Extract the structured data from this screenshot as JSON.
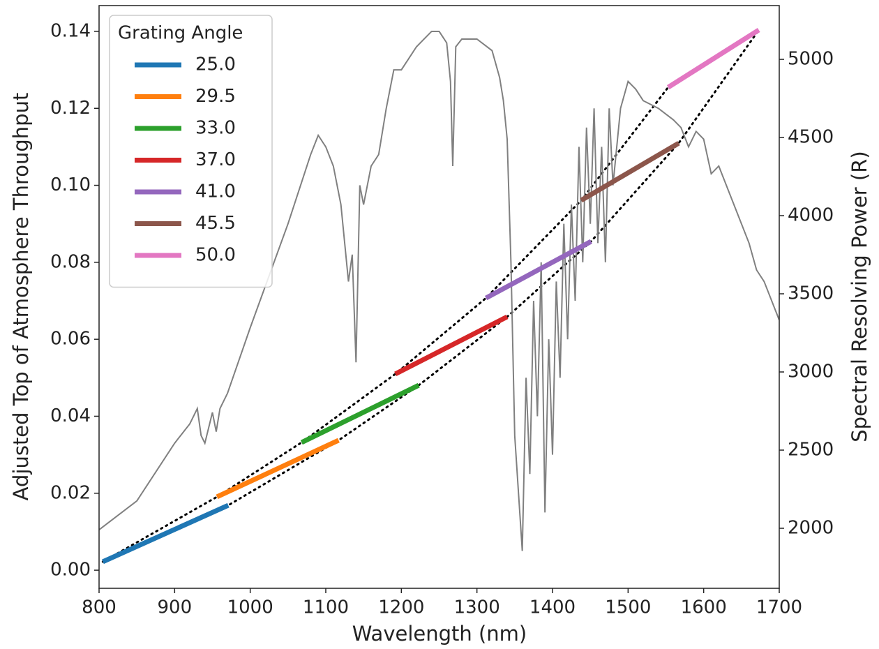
{
  "chart_data": {
    "type": "line",
    "xlabel": "Wavelength (nm)",
    "ylabel": "Adjusted Top of Atmosphere Throughput",
    "y2label": "Spectral Resolving Power (R)",
    "xlim": [
      800,
      1700
    ],
    "ylim": [
      -0.0047,
      0.1467
    ],
    "y2lim": [
      1616,
      5344
    ],
    "xticks": [
      800,
      900,
      1000,
      1100,
      1200,
      1300,
      1400,
      1500,
      1600,
      1700
    ],
    "yticks": [
      {
        "value": 0,
        "label": "0.00"
      },
      0.02,
      0.04,
      0.06,
      0.08,
      {
        "value": 0.1,
        "label": "0.10"
      },
      0.12,
      0.14
    ],
    "y2ticks": [
      2000,
      2500,
      3000,
      3500,
      4000,
      4500,
      5000
    ],
    "legend": "upper left",
    "legend_title": "Grating Angle",
    "envelope_lines": {
      "color": "#000000",
      "style": "dotted"
    },
    "series": [
      {
        "color": "#808080",
        "x": [
          800,
          850,
          900,
          920,
          930,
          935,
          940,
          950,
          955,
          960,
          970,
          1000,
          1050,
          1080,
          1090,
          1100,
          1110,
          1120,
          1125,
          1130,
          1135,
          1140,
          1145,
          1150,
          1160,
          1170,
          1180,
          1190,
          1200,
          1210,
          1220,
          1230,
          1240,
          1250,
          1260,
          1265,
          1268,
          1272,
          1280,
          1300,
          1320,
          1330,
          1335,
          1340,
          1345,
          1350,
          1355,
          1360,
          1365,
          1370,
          1375,
          1380,
          1385,
          1390,
          1395,
          1400,
          1405,
          1410,
          1415,
          1420,
          1425,
          1430,
          1435,
          1440,
          1445,
          1450,
          1455,
          1460,
          1465,
          1470,
          1475,
          1480,
          1490,
          1500,
          1510,
          1520,
          1540,
          1560,
          1570,
          1580,
          1590,
          1600,
          1610,
          1620,
          1640,
          1660,
          1670,
          1680,
          1700
        ],
        "values": [
          0.0105,
          0.018,
          0.033,
          0.038,
          0.042,
          0.035,
          0.033,
          0.041,
          0.036,
          0.042,
          0.046,
          0.063,
          0.09,
          0.108,
          0.113,
          0.11,
          0.105,
          0.095,
          0.085,
          0.075,
          0.082,
          0.054,
          0.1,
          0.095,
          0.105,
          0.108,
          0.12,
          0.13,
          0.13,
          0.133,
          0.136,
          0.138,
          0.14,
          0.14,
          0.137,
          0.127,
          0.105,
          0.136,
          0.138,
          0.138,
          0.135,
          0.128,
          0.122,
          0.112,
          0.08,
          0.035,
          0.02,
          0.005,
          0.05,
          0.025,
          0.07,
          0.04,
          0.08,
          0.015,
          0.06,
          0.03,
          0.075,
          0.05,
          0.09,
          0.06,
          0.095,
          0.07,
          0.11,
          0.08,
          0.115,
          0.09,
          0.12,
          0.085,
          0.11,
          0.08,
          0.12,
          0.1,
          0.12,
          0.127,
          0.125,
          0.122,
          0.12,
          0.117,
          0.115,
          0.11,
          0.114,
          0.112,
          0.103,
          0.105,
          0.095,
          0.085,
          0.078,
          0.075,
          0.065
        ]
      },
      {
        "name": "25.0",
        "color": "#1f77b4",
        "axis": "y2",
        "x": [
          805,
          971
        ],
        "values": [
          1786,
          2147
        ]
      },
      {
        "name": "29.5",
        "color": "#ff7f0e",
        "axis": "y2",
        "x": [
          956,
          1117
        ],
        "values": [
          2201,
          2563
        ]
      },
      {
        "name": "33.0",
        "color": "#2ca02c",
        "axis": "y2",
        "x": [
          1068,
          1223
        ],
        "values": [
          2549,
          2915
        ]
      },
      {
        "name": "37.0",
        "color": "#d62728",
        "axis": "y2",
        "x": [
          1192,
          1340
        ],
        "values": [
          2987,
          3353
        ]
      },
      {
        "name": "41.0",
        "color": "#9467bd",
        "axis": "y2",
        "x": [
          1312,
          1451
        ],
        "values": [
          3473,
          3835
        ]
      },
      {
        "name": "45.5",
        "color": "#8c564b",
        "axis": "y2",
        "x": [
          1438,
          1567
        ],
        "values": [
          4098,
          4464
        ]
      },
      {
        "name": "50.0",
        "color": "#e377c2",
        "axis": "y2",
        "x": [
          1553,
          1673
        ],
        "values": [
          4821,
          5188
        ]
      }
    ]
  }
}
